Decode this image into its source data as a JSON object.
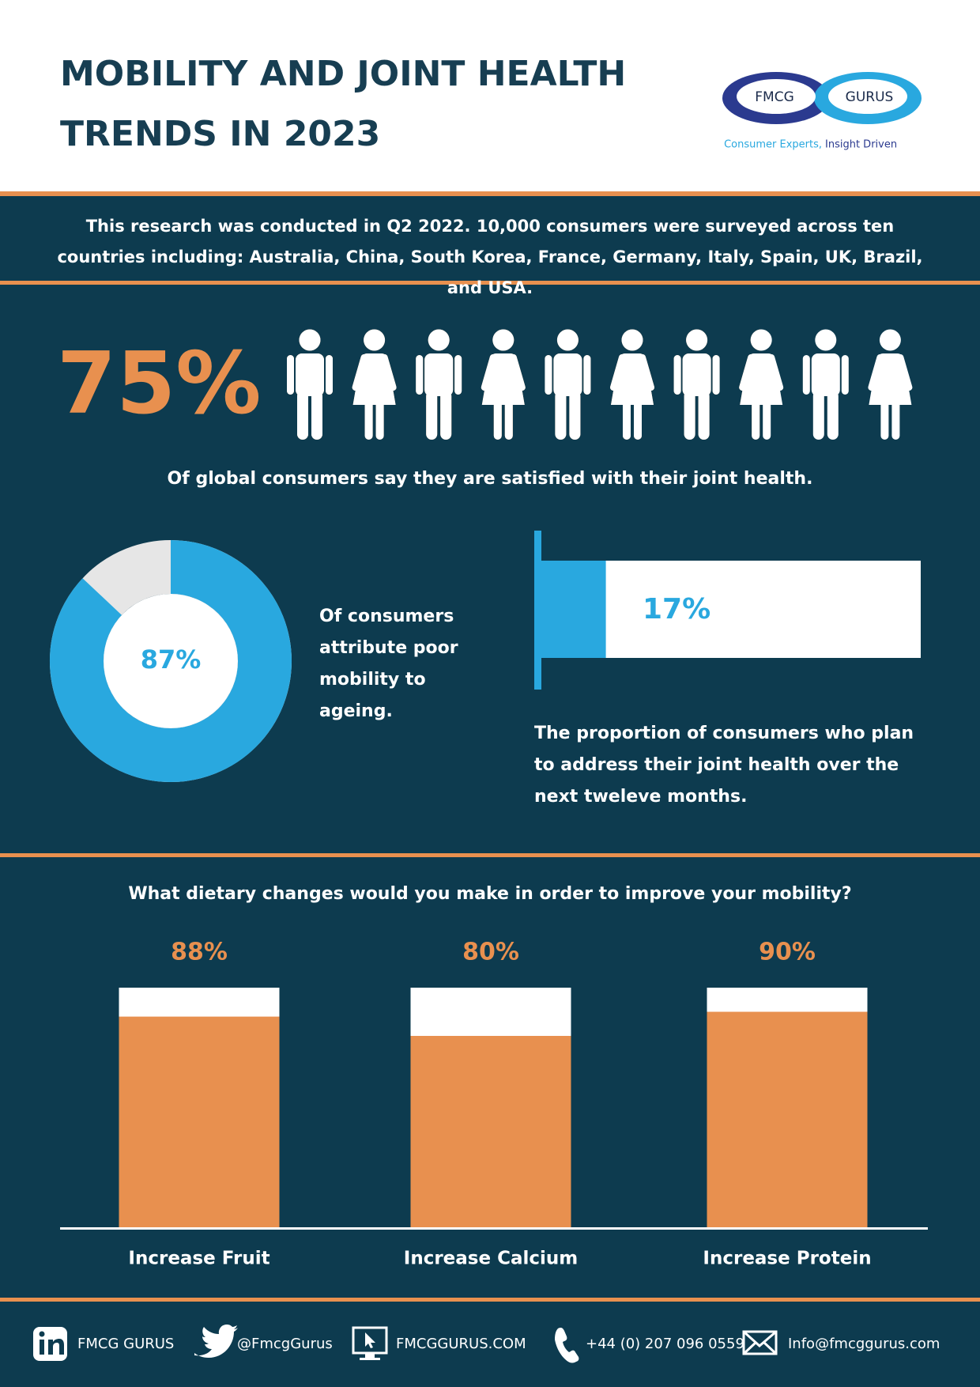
{
  "header": {
    "title_lines": [
      "MOBILITY AND JOINT HEALTH",
      "TRENDS IN 2023"
    ],
    "logo": {
      "left": "FMCG",
      "right": "GURUS",
      "tagline": "Consumer Experts,",
      "tagline_bold": "Insight Driven"
    }
  },
  "intro": "This research was conducted in Q2 2022. 10,000 consumers were surveyed across ten countries including: Australia, China, South Korea, France, Germany, Italy, Spain, UK, Brazil, and USA.",
  "chart_data": [
    {
      "type": "pictogram",
      "values": [
        75
      ],
      "value_labels": [
        "75%"
      ],
      "ylim": [
        0,
        100
      ],
      "caption": "Of global consumers say they are satisfied with their joint health.",
      "color": "#e8904f"
    },
    {
      "type": "donut",
      "values": [
        87
      ],
      "value_labels": [
        "87%"
      ],
      "ylim": [
        0,
        100
      ],
      "caption": "Of consumers attribute poor mobility to ageing.",
      "color": "#29a8df"
    },
    {
      "type": "progress",
      "values": [
        17
      ],
      "value_labels": [
        "17%"
      ],
      "ylim": [
        0,
        100
      ],
      "caption": "The proportion of consumers who plan to address their joint health over the next tweleve months.",
      "color": "#29a8df"
    },
    {
      "type": "bar",
      "title": "What dietary changes would you make in order to improve your mobility?",
      "categories": [
        "Increase Fruit",
        "Increase Calcium",
        "Increase Protein"
      ],
      "values": [
        88,
        80,
        90
      ],
      "value_labels": [
        "88%",
        "80%",
        "90%"
      ],
      "ylim": [
        0,
        100
      ],
      "color": "#e8904f"
    }
  ],
  "footer": {
    "linkedin": "FMCG GURUS",
    "twitter": "@FmcgGurus",
    "website": "FMCGGURUS.COM",
    "phone": "+44 (0) 207 096 0559",
    "email": "Info@fmcggurus.com"
  }
}
